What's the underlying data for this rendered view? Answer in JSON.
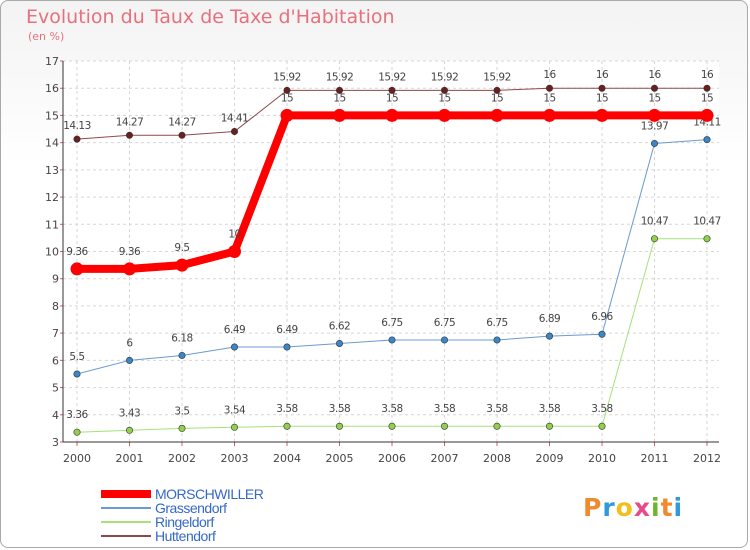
{
  "title": "Evolution du Taux de Taxe d'Habitation",
  "subtitle": "(en %)",
  "logo": {
    "letters": [
      "P",
      "r",
      "o",
      "x",
      "i",
      "t",
      "i"
    ],
    "colors": [
      "#f08a2e",
      "#2f9ad8",
      "#f0c020",
      "#e84a8a",
      "#6ab82a",
      "#f08a2e",
      "#2f9ad8"
    ]
  },
  "chart_data": {
    "type": "line",
    "x": [
      "2000",
      "2001",
      "2002",
      "2003",
      "2004",
      "2005",
      "2006",
      "2007",
      "2008",
      "2009",
      "2010",
      "2011",
      "2012"
    ],
    "ylim": [
      3,
      17
    ],
    "yticks": [
      "3",
      "4",
      "5",
      "6",
      "7",
      "8",
      "9",
      "10",
      "11",
      "12",
      "13",
      "14",
      "15",
      "16",
      "17"
    ],
    "grid": true,
    "legend_position": "bottom-left",
    "series": [
      {
        "name": "MORSCHWILLER",
        "color": "#ff0000",
        "width": 8,
        "values": [
          9.36,
          9.36,
          9.5,
          10,
          15,
          15,
          15,
          15,
          15,
          15,
          15,
          15,
          15
        ],
        "labels": [
          "9.36",
          "9.36",
          "9.5",
          "10",
          "15",
          "15",
          "15",
          "15",
          "15",
          "15",
          "15",
          "15",
          "15"
        ]
      },
      {
        "name": "Grassendorf",
        "color": "#6b9bd0",
        "point": "#3a86c6",
        "width": 1,
        "values": [
          5.5,
          6,
          6.18,
          6.49,
          6.49,
          6.62,
          6.75,
          6.75,
          6.75,
          6.89,
          6.96,
          13.97,
          14.11
        ],
        "labels": [
          "5.5",
          "6",
          "6.18",
          "6.49",
          "6.49",
          "6.62",
          "6.75",
          "6.75",
          "6.75",
          "6.89",
          "6.96",
          "13.97",
          "14.11"
        ]
      },
      {
        "name": "Ringeldorf",
        "color": "#a8e07a",
        "point": "#8fd14a",
        "width": 1,
        "values": [
          3.36,
          3.43,
          3.5,
          3.54,
          3.58,
          3.58,
          3.58,
          3.58,
          3.58,
          3.58,
          3.58,
          10.47,
          10.47
        ],
        "labels": [
          "3.36",
          "3.43",
          "3.5",
          "3.54",
          "3.58",
          "3.58",
          "3.58",
          "3.58",
          "3.58",
          "3.58",
          "3.58",
          "10.47",
          "10.47"
        ]
      },
      {
        "name": "Huttendorf",
        "color": "#8b4a4a",
        "point": "#6b1f1f",
        "width": 1,
        "values": [
          14.13,
          14.27,
          14.27,
          14.41,
          15.92,
          15.92,
          15.92,
          15.92,
          15.92,
          16,
          16,
          16,
          16
        ],
        "labels": [
          "14.13",
          "14.27",
          "14.27",
          "14.41",
          "15.92",
          "15.92",
          "15.92",
          "15.92",
          "15.92",
          "16",
          "16",
          "16",
          "16"
        ]
      }
    ]
  }
}
